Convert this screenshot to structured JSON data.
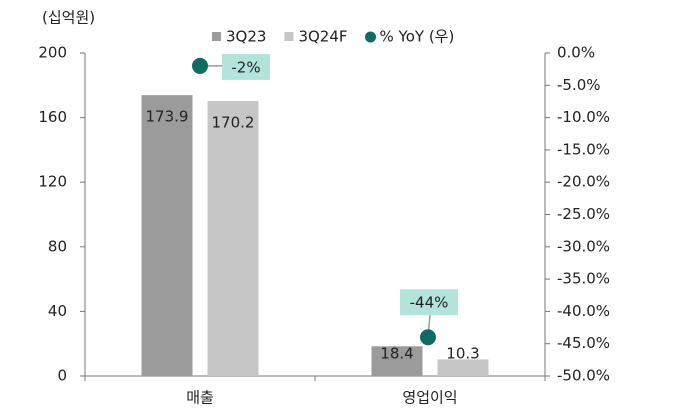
{
  "chart_data": {
    "type": "bar",
    "unit_label": "(십억원)",
    "categories": [
      "매출",
      "영업이익"
    ],
    "series": [
      {
        "name": "3Q23",
        "color": "#9b9b9b",
        "values": [
          173.9,
          18.4
        ]
      },
      {
        "name": "3Q24F",
        "color": "#c6c6c6",
        "values": [
          170.2,
          10.3
        ]
      },
      {
        "name": "% YoY (우)",
        "type": "scatter",
        "axis": "y2",
        "color": "#0f6b63",
        "label_color": "#b3e4dc",
        "values": [
          -2,
          -44
        ],
        "value_labels": [
          "-2%",
          "-44%"
        ]
      }
    ],
    "value_labels": [
      [
        "173.9",
        "18.4"
      ],
      [
        "170.2",
        "10.3"
      ]
    ],
    "ylim": [
      0,
      200
    ],
    "yticks": [
      0,
      40,
      80,
      120,
      160,
      200
    ],
    "y2lim": [
      -50,
      0
    ],
    "y2ticks": [
      {
        "value": 0,
        "label": "0.0%"
      },
      {
        "value": -5,
        "label": "-5.0%"
      },
      {
        "value": -10,
        "label": "-10.0%"
      },
      {
        "value": -15,
        "label": "-15.0%"
      },
      {
        "value": -20,
        "label": "-20.0%"
      },
      {
        "value": -25,
        "label": "-25.0%"
      },
      {
        "value": -30,
        "label": "-30.0%"
      },
      {
        "value": -35,
        "label": "-35.0%"
      },
      {
        "value": -40,
        "label": "-40.0%"
      },
      {
        "value": -45,
        "label": "-45.0%"
      },
      {
        "value": -50,
        "label": "-50.0%"
      }
    ],
    "grid": false
  }
}
